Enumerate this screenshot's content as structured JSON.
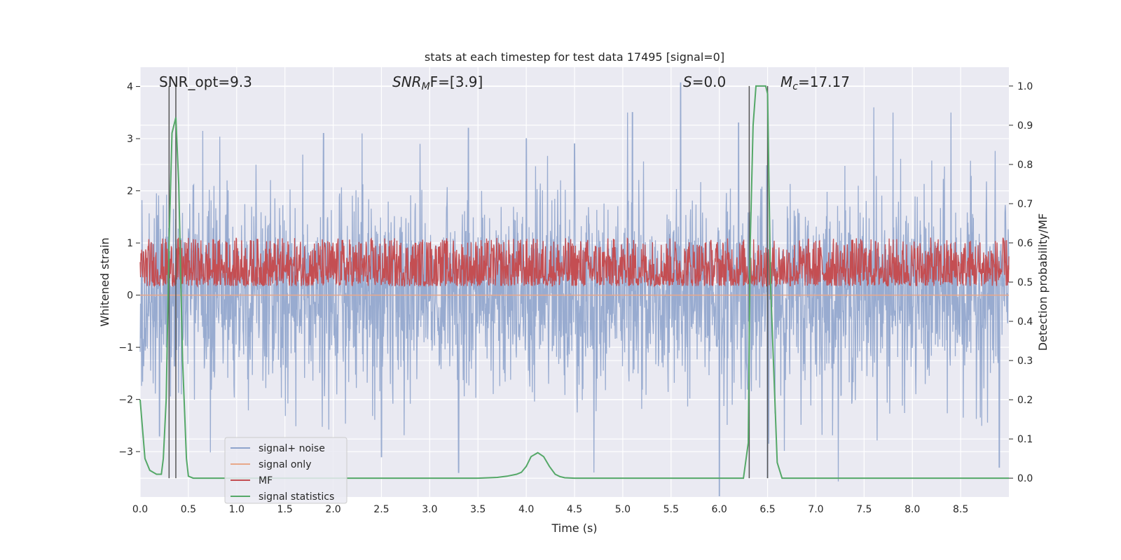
{
  "chart_data": {
    "type": "line",
    "title": "stats at each timestep for test data 17495 [signal=0]",
    "xlabel": "Time (s)",
    "ylabel": "Whitened strain",
    "y2label": "Detection probability/MF",
    "xlim": [
      0.0,
      9.0
    ],
    "ylim": [
      -3.87,
      4.37
    ],
    "y2lim": [
      -0.048,
      1.048
    ],
    "grid": true,
    "legend_position": "lower-left",
    "x_ticks": [
      "0.0",
      "0.5",
      "1.0",
      "1.5",
      "2.0",
      "2.5",
      "3.0",
      "3.5",
      "4.0",
      "4.5",
      "5.0",
      "5.5",
      "6.0",
      "6.5",
      "7.0",
      "7.5",
      "8.0",
      "8.5"
    ],
    "y_ticks": [
      "4",
      "3",
      "2",
      "1",
      "0",
      "−1",
      "−2",
      "−3"
    ],
    "y2_ticks": [
      "1.0",
      "0.9",
      "0.8",
      "0.7",
      "0.6",
      "0.5",
      "0.4",
      "0.3",
      "0.2",
      "0.1",
      "0.0"
    ],
    "annotations": {
      "snr_opt": "SNR_opt=9.3",
      "snr_mf_main": "SNR",
      "snr_mf_sub": "M",
      "snr_mf_rest": "F=[3.9]",
      "s_main": "S",
      "s_rest": "=0.0",
      "mc_main": "M",
      "mc_sub": "c",
      "mc_rest": "=17.17"
    },
    "vertical_lines_x": [
      0.3,
      0.37,
      6.31,
      6.5
    ],
    "series": [
      {
        "name": "signal+ noise",
        "color": "#8fa4cc",
        "axis": "left",
        "kind": "noise",
        "sigma": 0.95,
        "peaks": [
          [
            0.55,
            2.1
          ],
          [
            0.9,
            2.2
          ],
          [
            1.2,
            2.5
          ],
          [
            1.9,
            3.1
          ],
          [
            2.3,
            3.1
          ],
          [
            2.9,
            2.9
          ],
          [
            3.4,
            3.2
          ],
          [
            4.0,
            3.0
          ],
          [
            4.5,
            2.9
          ],
          [
            5.05,
            3.5
          ],
          [
            5.1,
            3.5
          ],
          [
            5.6,
            4.1
          ],
          [
            6.2,
            3.3
          ],
          [
            7.6,
            3.6
          ],
          [
            7.8,
            3.5
          ],
          [
            8.4,
            3.5
          ],
          [
            8.9,
            3.3
          ]
        ],
        "troughs": [
          [
            0.2,
            -2.7
          ],
          [
            2.5,
            -3.1
          ],
          [
            3.3,
            -3.4
          ],
          [
            4.7,
            -3.4
          ],
          [
            6.0,
            -3.85
          ],
          [
            6.5,
            -3.5
          ],
          [
            8.9,
            -3.3
          ]
        ]
      },
      {
        "name": "signal only",
        "color": "#e8a88a",
        "axis": "left",
        "kind": "flat",
        "value": 0.0
      },
      {
        "name": "MF",
        "color": "#c44e52",
        "axis": "right",
        "kind": "band",
        "low": 0.49,
        "high": 0.62,
        "peaks": [
          [
            0.9,
            0.6
          ],
          [
            3.0,
            0.6
          ],
          [
            3.1,
            0.59
          ]
        ]
      },
      {
        "name": "signal statistics",
        "color": "#55a868",
        "axis": "right",
        "kind": "curve",
        "x": [
          0.0,
          0.05,
          0.1,
          0.17,
          0.22,
          0.24,
          0.27,
          0.3,
          0.33,
          0.37,
          0.4,
          0.44,
          0.48,
          0.5,
          0.55,
          0.6,
          1.0,
          2.0,
          3.0,
          3.5,
          3.7,
          3.8,
          3.9,
          3.95,
          4.0,
          4.05,
          4.12,
          4.18,
          4.24,
          4.3,
          4.35,
          4.4,
          4.5,
          5.0,
          6.0,
          6.25,
          6.3,
          6.32,
          6.35,
          6.38,
          6.42,
          6.48,
          6.5,
          6.53,
          6.6,
          6.65,
          7.0,
          8.0,
          9.0
        ],
        "values": [
          0.2,
          0.05,
          0.02,
          0.01,
          0.01,
          0.05,
          0.2,
          0.6,
          0.88,
          0.92,
          0.75,
          0.3,
          0.05,
          0.005,
          0.0,
          0.0,
          0.0,
          0.0,
          0.0,
          0.0,
          0.002,
          0.005,
          0.01,
          0.015,
          0.03,
          0.055,
          0.065,
          0.055,
          0.03,
          0.01,
          0.004,
          0.001,
          0.0,
          0.0,
          0.0,
          0.0,
          0.09,
          0.6,
          0.9,
          1.0,
          1.0,
          1.0,
          0.98,
          0.5,
          0.04,
          0.0,
          0.0,
          0.0,
          0.0
        ]
      }
    ]
  }
}
